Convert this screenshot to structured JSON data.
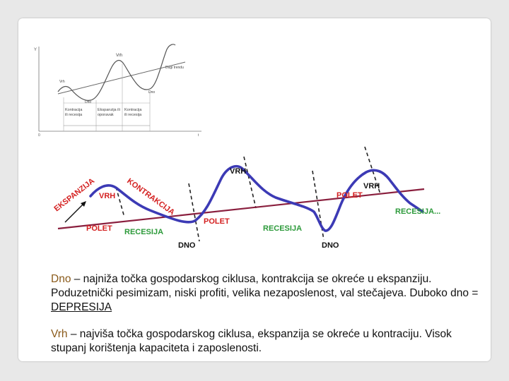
{
  "top_figure": {
    "labels": {
      "y_axis": "Y",
      "vrh_small": "Vrh",
      "vrh": "Vrh",
      "trend": "Dugi trendu",
      "dno_left": "Dno",
      "dno_right": "Dno",
      "origin": "0",
      "t_axis": "t"
    },
    "phases": [
      {
        "line1": "Kontracija",
        "line2": "ili recesija"
      },
      {
        "line1": "Ekspanzija ili",
        "line2": "oporavak"
      },
      {
        "line1": "Kontracija",
        "line2": "ili recesija"
      }
    ]
  },
  "main_figure": {
    "colors": {
      "curve": "#3c3ab5",
      "trend": "#8a1f3e",
      "label": "#d42020",
      "label_green": "#2c9a3a",
      "text_dark": "#111111"
    },
    "labels": {
      "ekspanzija": "EKSPANZIJA",
      "kontrakcija": "KONTRAKCIJA",
      "vrh_left": "VRH",
      "vrh_mid": "VRH",
      "vrh_right": "VRH",
      "polet_left": "POLET",
      "polet_mid": "POLET",
      "polet_right": "POLET",
      "recesija_left": "RECESIJA",
      "recesija_mid": "RECESIJA",
      "recesija_right": "RECESIJA...",
      "dno_left": "DNO",
      "dno_right": "DNO"
    }
  },
  "definitions": {
    "dno_term": "Dno",
    "dno_text": " – najniža točka gospodarskog ciklusa, kontrakcija se okreće u ekspanziju. Poduzetnički pesimizam, niski profiti, velika nezaposlenost, val stečajeva. Duboko dno = ",
    "dno_emph": "DEPRESIJA",
    "vrh_term": "Vrh",
    "vrh_text": " – najviša točka gospodarskog ciklusa, ekspanzija se okreće u kontraciju. Visok stupanj korištenja kapaciteta i zaposlenosti."
  }
}
